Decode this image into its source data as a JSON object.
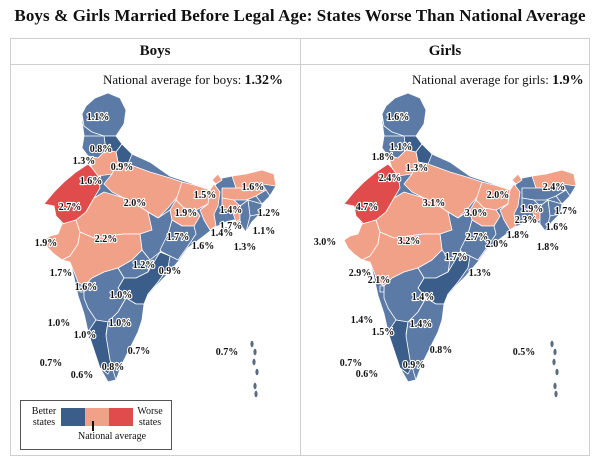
{
  "title": "Boys & Girls Married Before Legal Age: States Worse Than National Average",
  "colors": {
    "better_dark": "#3b5d89",
    "better_mid": "#5b7aa6",
    "worse_light": "#f2a189",
    "worse_mid": "#ee8c73",
    "worse_dark": "#e04b4b",
    "border": "#ffffff",
    "island": "#5a6b80"
  },
  "panels": [
    {
      "title": "Boys",
      "avg_text": "National average for boys:",
      "avg_value": "1.32%",
      "labels": [
        {
          "v": "1.1%"
        },
        {
          "v": "0.8%"
        },
        {
          "v": "1.3%"
        },
        {
          "v": "0.9%"
        },
        {
          "v": "1.6%"
        },
        {
          "v": "2.7%"
        },
        {
          "v": "2.0%"
        },
        {
          "v": "1.9%"
        },
        {
          "v": "1.5%"
        },
        {
          "v": "1.6%"
        },
        {
          "v": "1.4%"
        },
        {
          "v": "1.2%"
        },
        {
          "v": "1.7%"
        },
        {
          "v": "1.4%"
        },
        {
          "v": "1.1%"
        },
        {
          "v": "1.3%"
        },
        {
          "v": "1.7%"
        },
        {
          "v": "1.6%"
        },
        {
          "v": "1.9%"
        },
        {
          "v": "2.2%"
        },
        {
          "v": "1.2%"
        },
        {
          "v": "0.9%"
        },
        {
          "v": "1.7%"
        },
        {
          "v": "1.6%"
        },
        {
          "v": "1.0%"
        },
        {
          "v": "1.0%"
        },
        {
          "v": "1.0%"
        },
        {
          "v": "1.0%"
        },
        {
          "v": "0.7%"
        },
        {
          "v": "0.7%"
        },
        {
          "v": "0.8%"
        },
        {
          "v": "0.6%"
        },
        {
          "v": "0.7%"
        }
      ]
    },
    {
      "title": "Girls",
      "avg_text": "National average for girls:",
      "avg_value": "1.9%",
      "labels": [
        {
          "v": "1.6%"
        },
        {
          "v": "1.1%"
        },
        {
          "v": "1.8%"
        },
        {
          "v": "1.3%"
        },
        {
          "v": "2.4%"
        },
        {
          "v": "4.7%"
        },
        {
          "v": "3.1%"
        },
        {
          "v": "3.0%"
        },
        {
          "v": "2.0%"
        },
        {
          "v": "2.4%"
        },
        {
          "v": "1.9%"
        },
        {
          "v": "1.7%"
        },
        {
          "v": "2.3%"
        },
        {
          "v": "1.8%"
        },
        {
          "v": "1.6%"
        },
        {
          "v": "1.8%"
        },
        {
          "v": "2.7%"
        },
        {
          "v": "2.0%"
        },
        {
          "v": "3.0%"
        },
        {
          "v": "3.2%"
        },
        {
          "v": "1.7%"
        },
        {
          "v": "1.3%"
        },
        {
          "v": "2.9%"
        },
        {
          "v": "2.1%"
        },
        {
          "v": "1.4%"
        },
        {
          "v": "1.4%"
        },
        {
          "v": "1.4%"
        },
        {
          "v": "1.5%"
        },
        {
          "v": "0.8%"
        },
        {
          "v": "0.7%"
        },
        {
          "v": "0.9%"
        },
        {
          "v": "0.6%"
        },
        {
          "v": "0.5%"
        }
      ]
    }
  ],
  "legend": {
    "better": "Better states",
    "worse": "Worse states",
    "national": "National average"
  }
}
